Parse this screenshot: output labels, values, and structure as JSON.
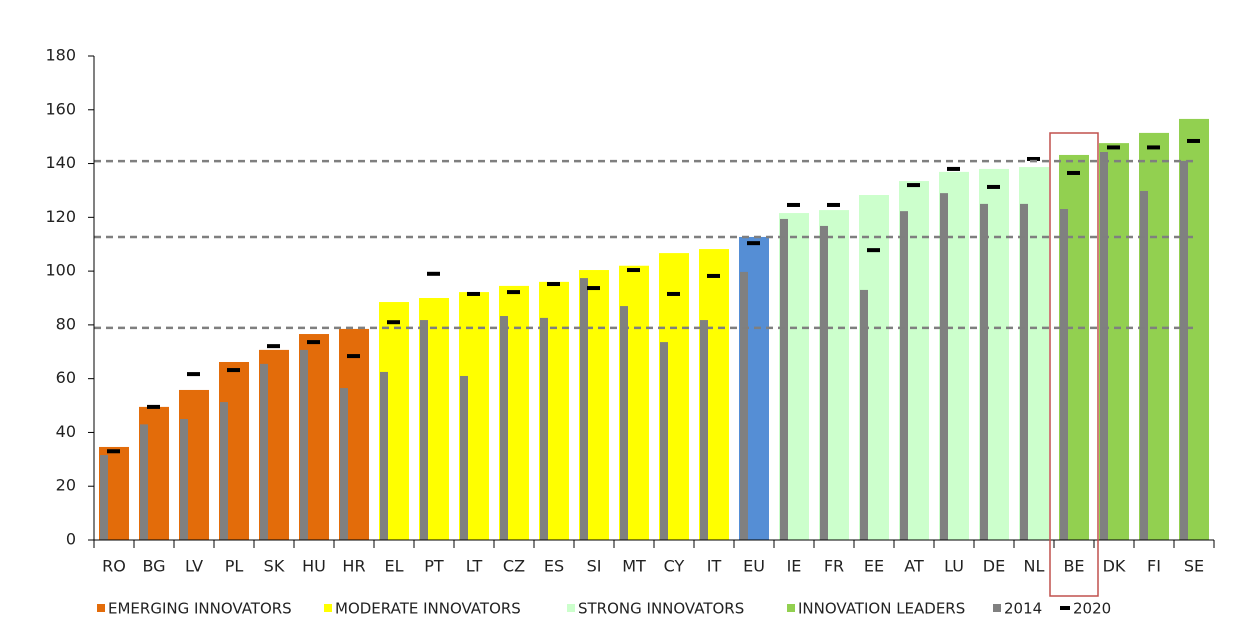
{
  "chart_data": {
    "type": "bar",
    "categories": [
      "RO",
      "BG",
      "LV",
      "PL",
      "SK",
      "HU",
      "HR",
      "EL",
      "PT",
      "LT",
      "CZ",
      "ES",
      "SI",
      "MT",
      "CY",
      "IT",
      "EU",
      "IE",
      "FR",
      "EE",
      "AT",
      "LU",
      "DE",
      "NL",
      "BE",
      "DK",
      "FI",
      "SE"
    ],
    "series": [
      {
        "name": "EMERGING INNOVATORS",
        "color": "#e36c0a",
        "kind": "bar",
        "values": [
          34.6,
          49.5,
          55.8,
          66.2,
          70.7,
          76.6,
          78.5,
          null,
          null,
          null,
          null,
          null,
          null,
          null,
          null,
          null,
          null,
          null,
          null,
          null,
          null,
          null,
          null,
          null,
          null,
          null,
          null,
          null
        ]
      },
      {
        "name": "MODERATE INNOVATORS",
        "color": "#ffff00",
        "kind": "bar",
        "values": [
          null,
          null,
          null,
          null,
          null,
          null,
          null,
          88.5,
          90,
          92.2,
          94.5,
          96,
          100.4,
          102,
          106.7,
          108.2,
          null,
          null,
          null,
          null,
          null,
          null,
          null,
          null,
          null,
          null,
          null,
          null
        ]
      },
      {
        "color": "#558ed5",
        "kind": "bar",
        "values": [
          null,
          null,
          null,
          null,
          null,
          null,
          null,
          null,
          null,
          null,
          null,
          null,
          null,
          null,
          null,
          null,
          112.7,
          null,
          null,
          null,
          null,
          null,
          null,
          null,
          null,
          null,
          null,
          null
        ]
      },
      {
        "name": "STRONG INNOVATORS",
        "color": "#ccffcc",
        "kind": "bar",
        "values": [
          null,
          null,
          null,
          null,
          null,
          null,
          null,
          null,
          null,
          null,
          null,
          null,
          null,
          null,
          null,
          null,
          null,
          121.6,
          122.7,
          128.3,
          133.5,
          136.9,
          138,
          138.7,
          null,
          null,
          null,
          null
        ]
      },
      {
        "name": "INNOVATION LEADERS",
        "color": "#92d050",
        "kind": "bar",
        "values": [
          null,
          null,
          null,
          null,
          null,
          null,
          null,
          null,
          null,
          null,
          null,
          null,
          null,
          null,
          null,
          null,
          null,
          null,
          null,
          null,
          null,
          null,
          null,
          null,
          143.2,
          147.6,
          151.4,
          156.6
        ]
      },
      {
        "name": "2014",
        "color": "#808080",
        "kind": "thin-bar",
        "values": [
          31.6,
          43,
          45,
          51.3,
          65.5,
          70.7,
          56.5,
          62.5,
          81.8,
          61,
          83.3,
          82.6,
          97.4,
          87,
          73.6,
          81.8,
          99.7,
          119.4,
          116.8,
          93,
          122.3,
          129,
          125,
          125,
          123.1,
          144.3,
          129.8,
          141
        ]
      },
      {
        "name": "2020",
        "color": "#000000",
        "kind": "dash",
        "values": [
          33,
          49.5,
          61.7,
          63.2,
          72.1,
          73.6,
          68.4,
          81,
          99,
          91.5,
          92.2,
          95.2,
          93.7,
          100.4,
          91.5,
          98.2,
          110.4,
          124.6,
          124.6,
          107.8,
          132,
          138,
          131.3,
          141.7,
          136.5,
          146,
          146,
          148.4
        ]
      }
    ],
    "thresholds": [
      78.9,
      112.7,
      140.9
    ],
    "highlight_category": 24,
    "highlight_color": "#c0504d",
    "ylim": [
      0,
      180
    ],
    "yticks": [
      0,
      20,
      40,
      60,
      80,
      100,
      120,
      140,
      160,
      180
    ]
  }
}
